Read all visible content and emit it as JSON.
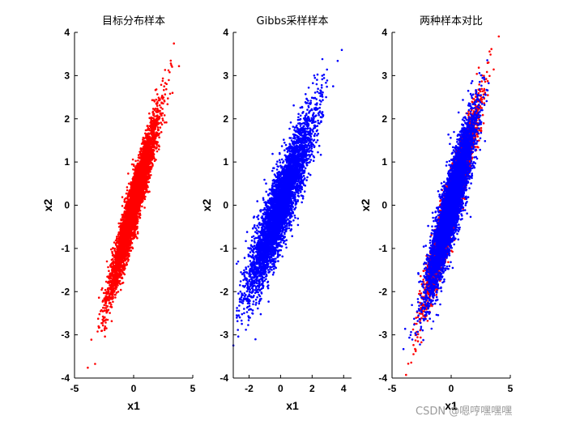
{
  "chart_data": [
    {
      "type": "scatter",
      "title": "目标分布样本",
      "xlabel": "x1",
      "ylabel": "x2",
      "xlim": [
        -5,
        5
      ],
      "ylim": [
        -4,
        4
      ],
      "xticks": [
        -5,
        0,
        5
      ],
      "yticks": [
        -4,
        -3,
        -2,
        -1,
        0,
        1,
        2,
        3,
        4
      ],
      "grid": false,
      "series": [
        {
          "color": "#ff0000",
          "n_points": 5000,
          "mean": [
            0,
            0
          ],
          "std": [
            1,
            1
          ],
          "correlation": 0.95
        }
      ]
    },
    {
      "type": "scatter",
      "title": "Gibbs采样样本",
      "xlabel": "x1",
      "ylabel": "x2",
      "xlim": [
        -3,
        4.5
      ],
      "ylim": [
        -4,
        4
      ],
      "xticks": [
        -2,
        0,
        2,
        4
      ],
      "yticks": [
        -4,
        -3,
        -2,
        -1,
        0,
        1,
        2,
        3,
        4
      ],
      "grid": false,
      "series": [
        {
          "color": "#0000ff",
          "n_points": 5000,
          "mean": [
            0,
            0
          ],
          "std": [
            1,
            1
          ],
          "correlation": 0.9
        }
      ]
    },
    {
      "type": "scatter",
      "title": "两种样本对比",
      "xlabel": "x1",
      "ylabel": "x2",
      "xlim": [
        -5,
        5
      ],
      "ylim": [
        -4,
        4
      ],
      "xticks": [
        -5,
        0,
        5
      ],
      "yticks": [
        -4,
        -3,
        -2,
        -1,
        0,
        1,
        2,
        3,
        4
      ],
      "grid": false,
      "series": [
        {
          "color": "#ff0000",
          "n_points": 5000,
          "mean": [
            0,
            0
          ],
          "std": [
            1,
            1
          ],
          "correlation": 0.95
        },
        {
          "color": "#0000ff",
          "n_points": 5000,
          "mean": [
            0,
            0
          ],
          "std": [
            1,
            1
          ],
          "correlation": 0.9
        }
      ]
    }
  ],
  "watermark": "CSDN @嗯哼嘿嘿嘿"
}
